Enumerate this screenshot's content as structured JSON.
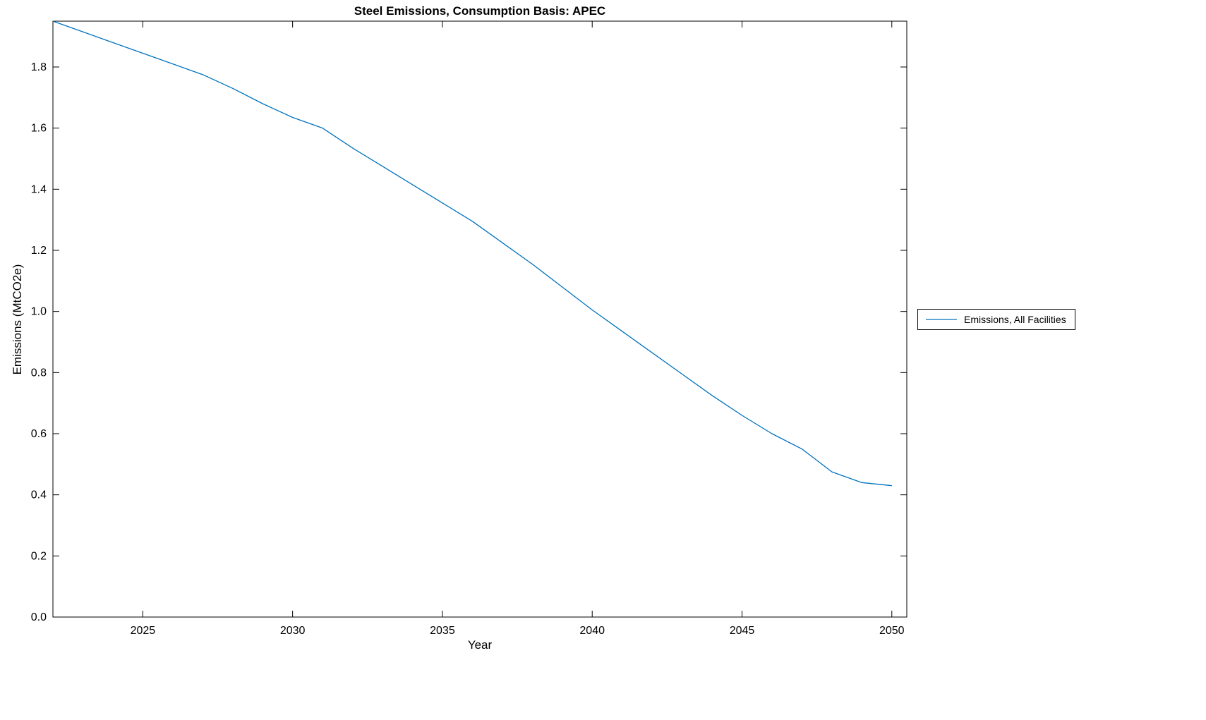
{
  "chart_data": {
    "type": "line",
    "title": "Steel Emissions, Consumption Basis: APEC",
    "xlabel": "Year",
    "ylabel": "Emissions (MtCO2e)",
    "xlim": [
      2022,
      2050.5
    ],
    "ylim": [
      0,
      1.95
    ],
    "xticks": [
      2025,
      2030,
      2035,
      2040,
      2045,
      2050
    ],
    "yticks": [
      0.0,
      0.2,
      0.4,
      0.6,
      0.8,
      1.0,
      1.2,
      1.4,
      1.6,
      1.8
    ],
    "grid": false,
    "line_color": "#0072BD",
    "legend": {
      "position": "right-outside",
      "entries": [
        "Emissions, All Facilities"
      ]
    },
    "series": [
      {
        "name": "Emissions, All Facilities",
        "x": [
          2022,
          2023,
          2024,
          2025,
          2026,
          2027,
          2028,
          2029,
          2030,
          2031,
          2032,
          2033,
          2034,
          2035,
          2036,
          2037,
          2038,
          2039,
          2040,
          2041,
          2042,
          2043,
          2044,
          2045,
          2046,
          2047,
          2048,
          2049,
          2050
        ],
        "y": [
          1.95,
          1.915,
          1.88,
          1.845,
          1.81,
          1.775,
          1.73,
          1.68,
          1.635,
          1.6,
          1.535,
          1.475,
          1.415,
          1.355,
          1.295,
          1.225,
          1.155,
          1.08,
          1.005,
          0.935,
          0.865,
          0.795,
          0.725,
          0.66,
          0.6,
          0.55,
          0.475,
          0.44,
          0.43
        ]
      }
    ]
  }
}
